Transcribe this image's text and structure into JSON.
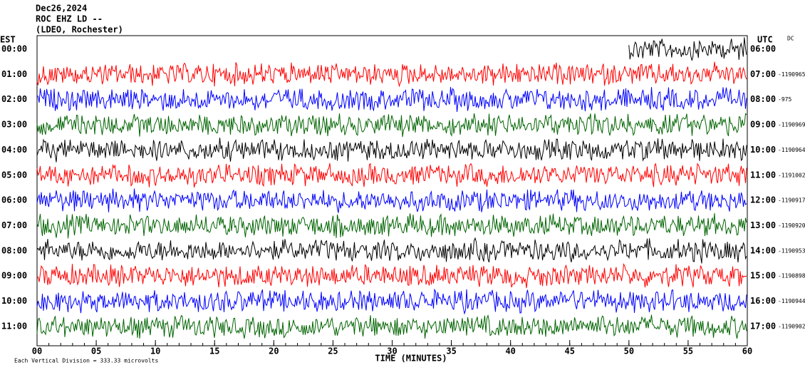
{
  "chart_data": {
    "type": "helicorder",
    "title_lines": [
      "Dec26,2024",
      "ROC EHZ LD --",
      "(LDEO, Rochester)"
    ],
    "left_axis_label": "EST",
    "right_axis_label": "UTC",
    "right_note": "DC",
    "categories": [
      "00:00",
      "01:00",
      "02:00",
      "03:00",
      "04:00",
      "05:00",
      "06:00",
      "07:00",
      "08:00",
      "09:00",
      "10:00",
      "11:00"
    ],
    "right_categories": [
      "06:00",
      "07:00",
      "08:00",
      "09:00",
      "10:00",
      "11:00",
      "12:00",
      "13:00",
      "14:00",
      "15:00",
      "16:00",
      "17:00"
    ],
    "right_values": [
      null,
      "-1190965",
      "-975",
      "-1190969",
      "-1190964",
      "-1191002",
      "-1190917",
      "-1190920",
      "-1190953",
      "-1190898",
      "-1190944",
      "-1190902"
    ],
    "series_colors": [
      "#000000",
      "#ff0000",
      "#0000ff",
      "#006400"
    ],
    "xlim": [
      0,
      60
    ],
    "xticks": [
      {
        "value": 0,
        "label": "00"
      },
      {
        "value": 5,
        "label": "05"
      },
      10,
      15,
      20,
      25,
      30,
      35,
      40,
      45,
      50,
      55,
      60
    ],
    "xlabel": "TIME (MINUTES)",
    "footer": "Each Vertical Division =  333.33 microvolts"
  }
}
